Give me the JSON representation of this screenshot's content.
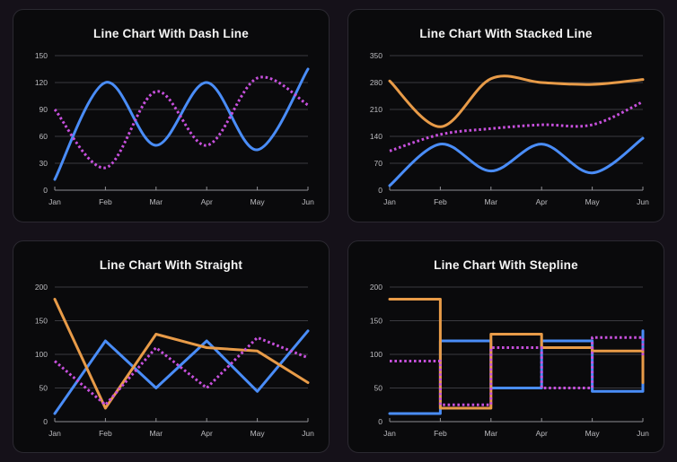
{
  "theme": {
    "page_bg": "#151119",
    "card_bg": "#0a0a0c",
    "card_border": "#2b2931",
    "title_color": "#f5f5f5",
    "label_color": "#bcbcc0",
    "grid_color": "#3a3a40",
    "axis_color": "#8e8e93",
    "accent_blue": "#4a8df8",
    "accent_magenta": "#c750dd",
    "accent_orange": "#e89b48"
  },
  "chart_data": [
    {
      "type": "line",
      "title": "Line Chart With Dash Line",
      "curve": "smooth",
      "stacked": false,
      "grid": true,
      "legend": "none",
      "categories": [
        "Jan",
        "Feb",
        "Mar",
        "Apr",
        "May",
        "Jun"
      ],
      "xlabel": "",
      "ylabel": "",
      "ylim": [
        0,
        150
      ],
      "yticks": [
        0,
        30,
        60,
        90,
        120,
        150
      ],
      "series": [
        {
          "name": "blue-solid-line",
          "color": "#4a8df8",
          "style": "solid",
          "values": [
            12,
            120,
            50,
            120,
            45,
            135
          ]
        },
        {
          "name": "magenta-dash-line",
          "color": "#c750dd",
          "style": "dotted",
          "values": [
            90,
            25,
            110,
            50,
            125,
            95
          ]
        }
      ]
    },
    {
      "type": "line",
      "title": "Line Chart With Stacked Line",
      "curve": "smooth",
      "stacked": true,
      "grid": true,
      "legend": "none",
      "categories": [
        "Jan",
        "Feb",
        "Mar",
        "Apr",
        "May",
        "Jun"
      ],
      "xlabel": "",
      "ylabel": "",
      "ylim": [
        0,
        350
      ],
      "yticks": [
        0,
        70,
        140,
        210,
        280,
        350
      ],
      "series": [
        {
          "name": "blue-solid-line",
          "color": "#4a8df8",
          "style": "solid",
          "values": [
            12,
            120,
            50,
            120,
            45,
            135
          ]
        },
        {
          "name": "magenta-dash-line",
          "color": "#c750dd",
          "style": "dotted",
          "values": [
            90,
            25,
            110,
            50,
            125,
            95
          ]
        },
        {
          "name": "orange-solid-line",
          "color": "#e89b48",
          "style": "solid",
          "values": [
            182,
            20,
            130,
            110,
            105,
            58
          ]
        }
      ]
    },
    {
      "type": "line",
      "title": "Line Chart With Straight",
      "curve": "straight",
      "stacked": false,
      "grid": true,
      "legend": "none",
      "categories": [
        "Jan",
        "Feb",
        "Mar",
        "Apr",
        "May",
        "Jun"
      ],
      "xlabel": "",
      "ylabel": "",
      "ylim": [
        0,
        200
      ],
      "yticks": [
        0,
        50,
        100,
        150,
        200
      ],
      "series": [
        {
          "name": "blue-solid-line",
          "color": "#4a8df8",
          "style": "solid",
          "values": [
            12,
            120,
            50,
            120,
            45,
            135
          ]
        },
        {
          "name": "orange-solid-line",
          "color": "#e89b48",
          "style": "solid",
          "values": [
            182,
            20,
            130,
            110,
            105,
            58
          ]
        },
        {
          "name": "magenta-dash-line",
          "color": "#c750dd",
          "style": "dotted",
          "values": [
            90,
            25,
            110,
            50,
            125,
            95
          ]
        }
      ]
    },
    {
      "type": "line",
      "title": "Line Chart With Stepline",
      "curve": "stepline",
      "stacked": false,
      "grid": true,
      "legend": "none",
      "categories": [
        "Jan",
        "Feb",
        "Mar",
        "Apr",
        "May",
        "Jun"
      ],
      "xlabel": "",
      "ylabel": "",
      "ylim": [
        0,
        200
      ],
      "yticks": [
        0,
        50,
        100,
        150,
        200
      ],
      "series": [
        {
          "name": "blue-solid-line",
          "color": "#4a8df8",
          "style": "solid",
          "values": [
            12,
            120,
            50,
            120,
            45,
            135
          ]
        },
        {
          "name": "orange-solid-line",
          "color": "#e89b48",
          "style": "solid",
          "values": [
            182,
            20,
            130,
            110,
            105,
            58
          ]
        },
        {
          "name": "magenta-dash-line",
          "color": "#c750dd",
          "style": "dotted",
          "values": [
            90,
            25,
            110,
            50,
            125,
            95
          ]
        }
      ]
    }
  ]
}
